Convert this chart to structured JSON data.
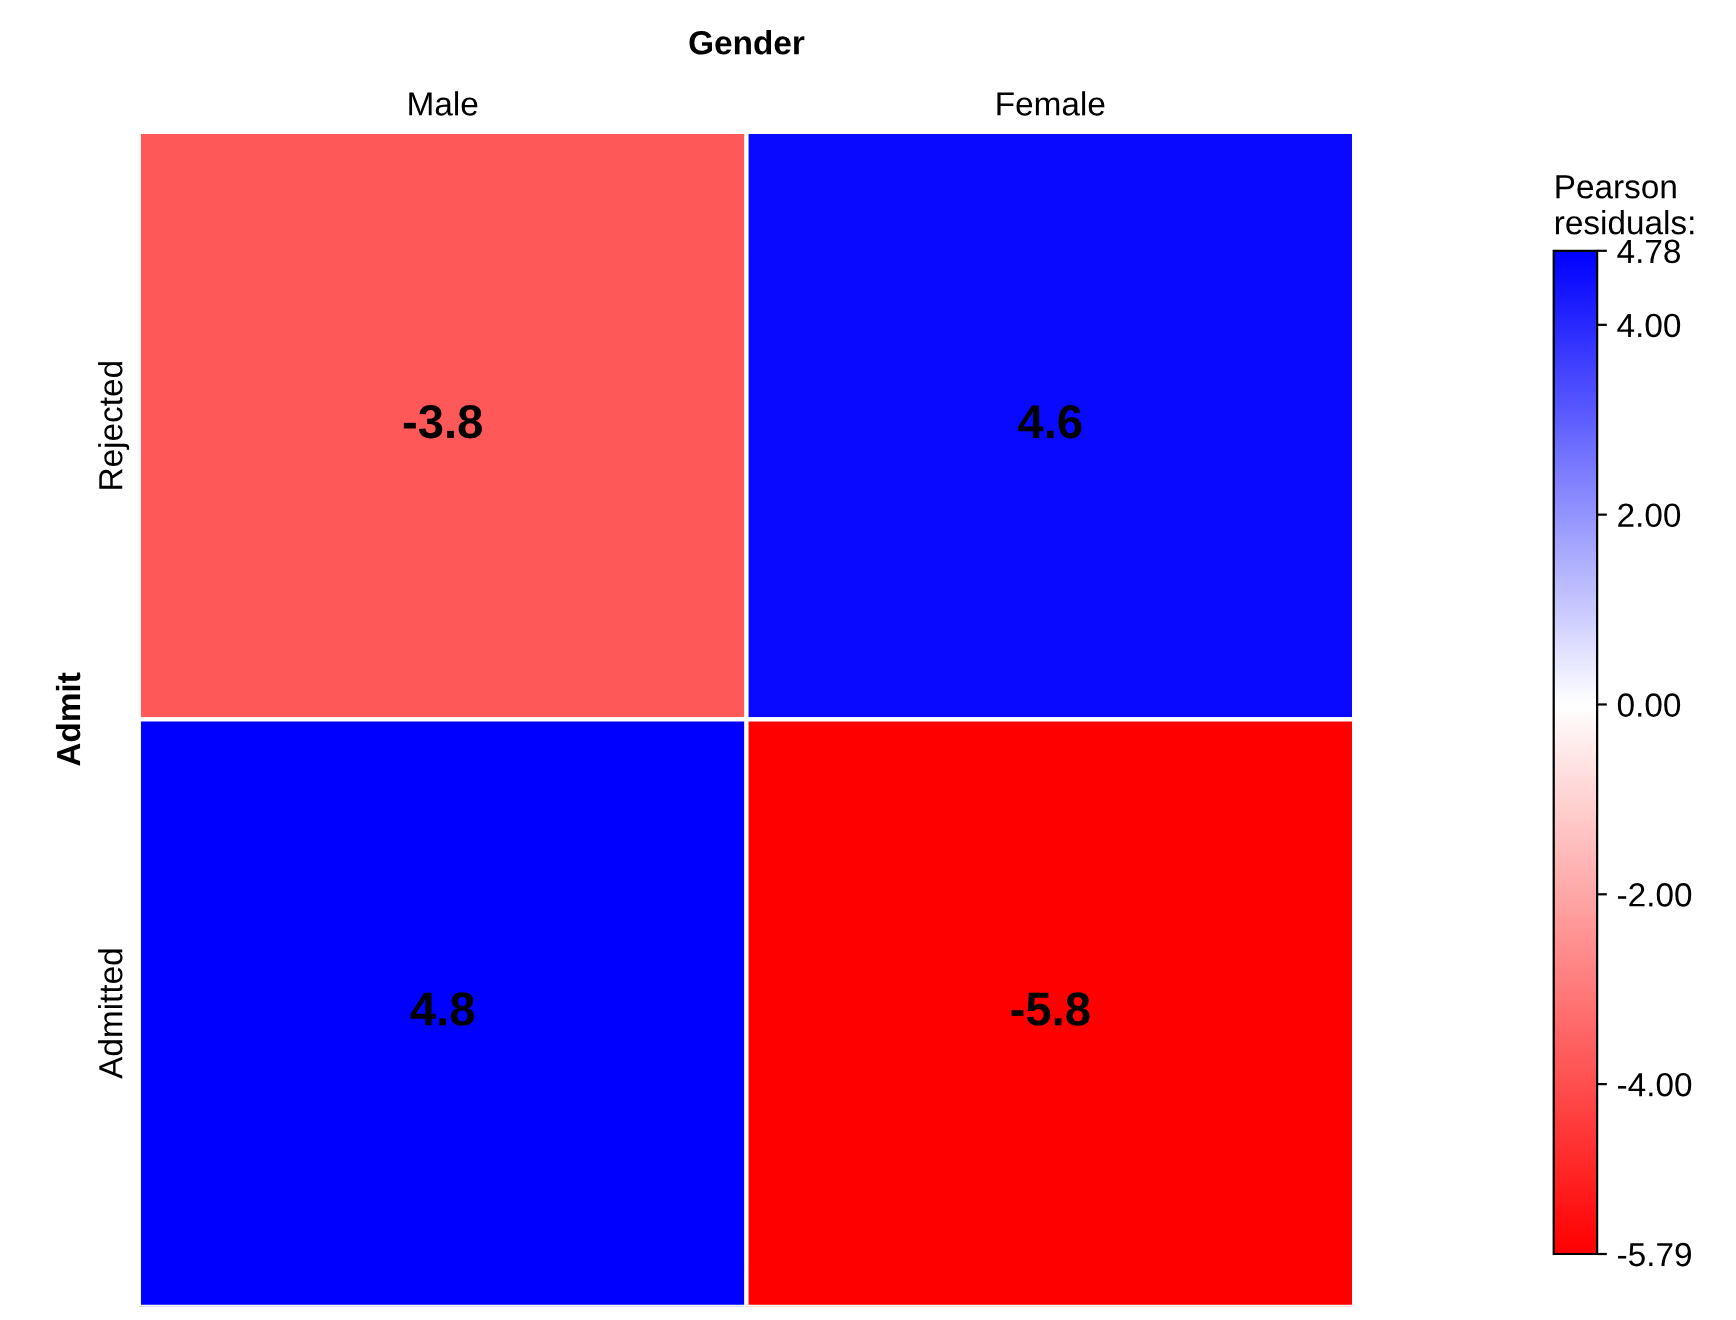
{
  "chart_data": {
    "type": "heatmap",
    "title": "Gender",
    "ylabel": "Admit",
    "clabel": "Pearson\nresiduals:",
    "categories": [
      "Male",
      "Female"
    ],
    "y_categories": [
      "Rejected",
      "Admitted"
    ],
    "cells": [
      [
        -3.8,
        4.6
      ],
      [
        4.78,
        -5.79
      ]
    ],
    "cell_labels": [
      [
        "-3.8",
        "4.6"
      ],
      [
        "4.8",
        "-5.8"
      ]
    ],
    "data_labels": true,
    "colors": [
      "#ff0000",
      "#ffffff",
      "#0000ff"
    ],
    "clim": [
      -5.79,
      4.78
    ],
    "cticks": [
      {
        "value": 4.78,
        "label": "4.78"
      },
      {
        "value": 4.0,
        "label": "4.00"
      },
      {
        "value": 2.0,
        "label": "2.00"
      },
      {
        "value": 0.0,
        "label": "0.00"
      },
      {
        "value": -2.0,
        "label": "-2.00"
      },
      {
        "value": -4.0,
        "label": "-4.00"
      },
      {
        "value": -5.79,
        "label": "-5.79"
      }
    ]
  }
}
